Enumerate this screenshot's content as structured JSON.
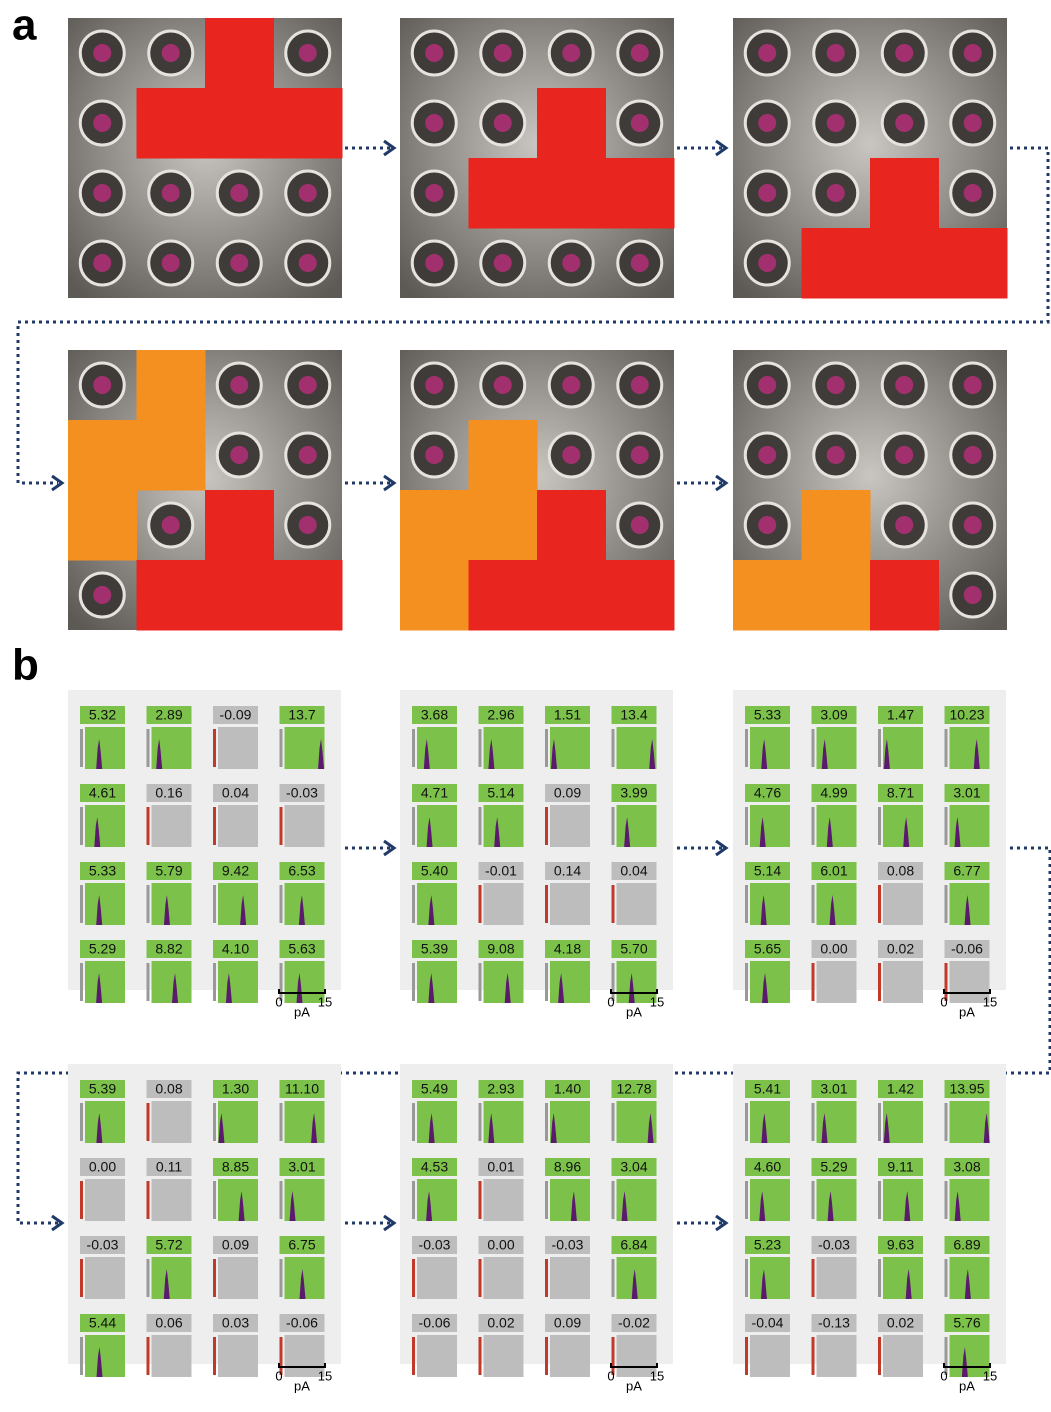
{
  "panel_a": {
    "label": "a"
  },
  "panel_b": {
    "label": "b",
    "scale": {
      "min": "0",
      "max": "15",
      "unit": "pA"
    },
    "grids": [
      {
        "rows": [
          [
            "5.32",
            "2.89",
            "-0.09",
            "13.7"
          ],
          [
            "4.61",
            "0.16",
            "0.04",
            "-0.03"
          ],
          [
            "5.33",
            "5.79",
            "9.42",
            "6.53"
          ],
          [
            "5.29",
            "8.82",
            "4.10",
            "5.63"
          ]
        ],
        "active": [
          [
            true,
            true,
            false,
            true
          ],
          [
            true,
            false,
            false,
            false
          ],
          [
            true,
            true,
            true,
            true
          ],
          [
            true,
            true,
            true,
            true
          ]
        ]
      },
      {
        "rows": [
          [
            "3.68",
            "2.96",
            "1.51",
            "13.4"
          ],
          [
            "4.71",
            "5.14",
            "0.09",
            "3.99"
          ],
          [
            "5.40",
            "-0.01",
            "0.14",
            "0.04"
          ],
          [
            "5.39",
            "9.08",
            "4.18",
            "5.70"
          ]
        ],
        "active": [
          [
            true,
            true,
            true,
            true
          ],
          [
            true,
            true,
            false,
            true
          ],
          [
            true,
            false,
            false,
            false
          ],
          [
            true,
            true,
            true,
            true
          ]
        ]
      },
      {
        "rows": [
          [
            "5.33",
            "3.09",
            "1.47",
            "10.23"
          ],
          [
            "4.76",
            "4.99",
            "8.71",
            "3.01"
          ],
          [
            "5.14",
            "6.01",
            "0.08",
            "6.77"
          ],
          [
            "5.65",
            "0.00",
            "0.02",
            "-0.06"
          ]
        ],
        "active": [
          [
            true,
            true,
            true,
            true
          ],
          [
            true,
            true,
            true,
            true
          ],
          [
            true,
            true,
            false,
            true
          ],
          [
            true,
            false,
            false,
            false
          ]
        ]
      },
      {
        "rows": [
          [
            "5.39",
            "0.08",
            "1.30",
            "11.10"
          ],
          [
            "0.00",
            "0.11",
            "8.85",
            "3.01"
          ],
          [
            "-0.03",
            "5.72",
            "0.09",
            "6.75"
          ],
          [
            "5.44",
            "0.06",
            "0.03",
            "-0.06"
          ]
        ],
        "active": [
          [
            true,
            false,
            true,
            true
          ],
          [
            false,
            false,
            true,
            true
          ],
          [
            false,
            true,
            false,
            true
          ],
          [
            true,
            false,
            false,
            false
          ]
        ]
      },
      {
        "rows": [
          [
            "5.49",
            "2.93",
            "1.40",
            "12.78"
          ],
          [
            "4.53",
            "0.01",
            "8.96",
            "3.04"
          ],
          [
            "-0.03",
            "0.00",
            "-0.03",
            "6.84"
          ],
          [
            "-0.06",
            "0.02",
            "0.09",
            "-0.02"
          ]
        ],
        "active": [
          [
            true,
            true,
            true,
            true
          ],
          [
            true,
            false,
            true,
            true
          ],
          [
            false,
            false,
            false,
            true
          ],
          [
            false,
            false,
            false,
            false
          ]
        ]
      },
      {
        "rows": [
          [
            "5.41",
            "3.01",
            "1.42",
            "13.95"
          ],
          [
            "4.60",
            "5.29",
            "9.11",
            "3.08"
          ],
          [
            "5.23",
            "-0.03",
            "9.63",
            "6.89"
          ],
          [
            "-0.04",
            "-0.13",
            "0.02",
            "5.76"
          ]
        ],
        "active": [
          [
            true,
            true,
            true,
            true
          ],
          [
            true,
            true,
            true,
            true
          ],
          [
            true,
            false,
            true,
            true
          ],
          [
            false,
            false,
            false,
            true
          ]
        ]
      }
    ]
  }
}
